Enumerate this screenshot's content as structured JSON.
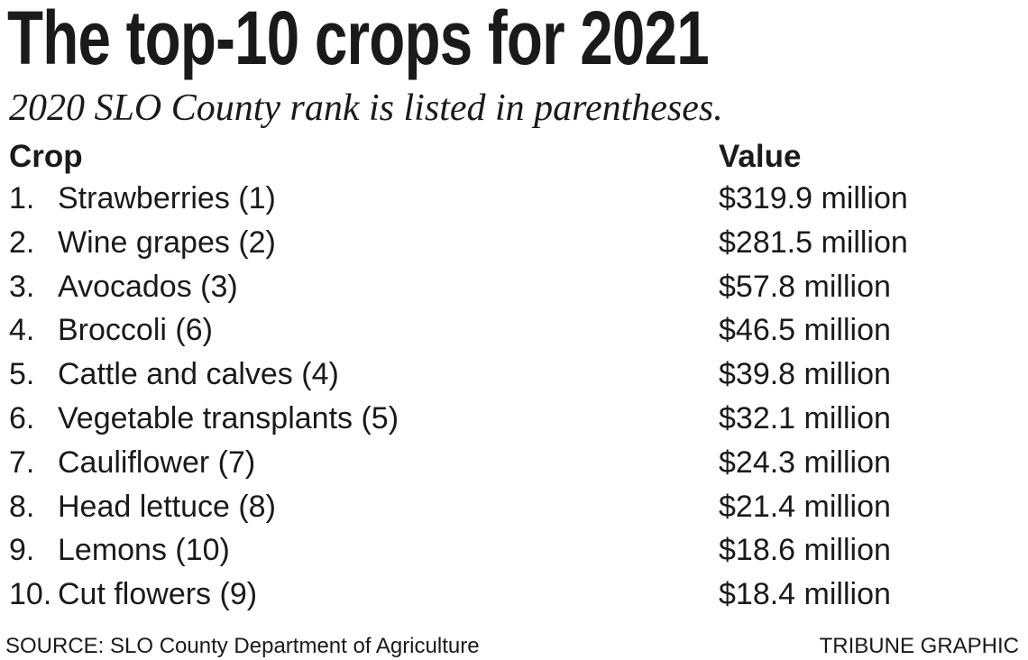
{
  "title": "The top-10 crops for 2021",
  "subtitle": "2020 SLO County rank is listed in parentheses.",
  "chart_data": {
    "type": "table",
    "columns": [
      "Crop",
      "Value"
    ],
    "rows": [
      {
        "rank": "1.",
        "crop": "Strawberries (1)",
        "value": "$319.9 million"
      },
      {
        "rank": "2.",
        "crop": "Wine grapes (2)",
        "value": "$281.5 million"
      },
      {
        "rank": "3.",
        "crop": "Avocados (3)",
        "value": "$57.8 million"
      },
      {
        "rank": "4.",
        "crop": "Broccoli (6)",
        "value": "$46.5 million"
      },
      {
        "rank": "5.",
        "crop": "Cattle and calves (4)",
        "value": "$39.8 million"
      },
      {
        "rank": "6.",
        "crop": "Vegetable transplants (5)",
        "value": "$32.1 million"
      },
      {
        "rank": "7.",
        "crop": "Cauliflower (7)",
        "value": "$24.3 million"
      },
      {
        "rank": "8.",
        "crop": "Head lettuce (8)",
        "value": "$21.4 million"
      },
      {
        "rank": "9.",
        "crop": "Lemons (10)",
        "value": "$18.6 million"
      },
      {
        "rank": "10.",
        "crop": "Cut flowers (9)",
        "value": "$18.4 million"
      }
    ]
  },
  "footer": {
    "source": "SOURCE: SLO County Department of Agriculture",
    "credit": "TRIBUNE GRAPHIC"
  }
}
